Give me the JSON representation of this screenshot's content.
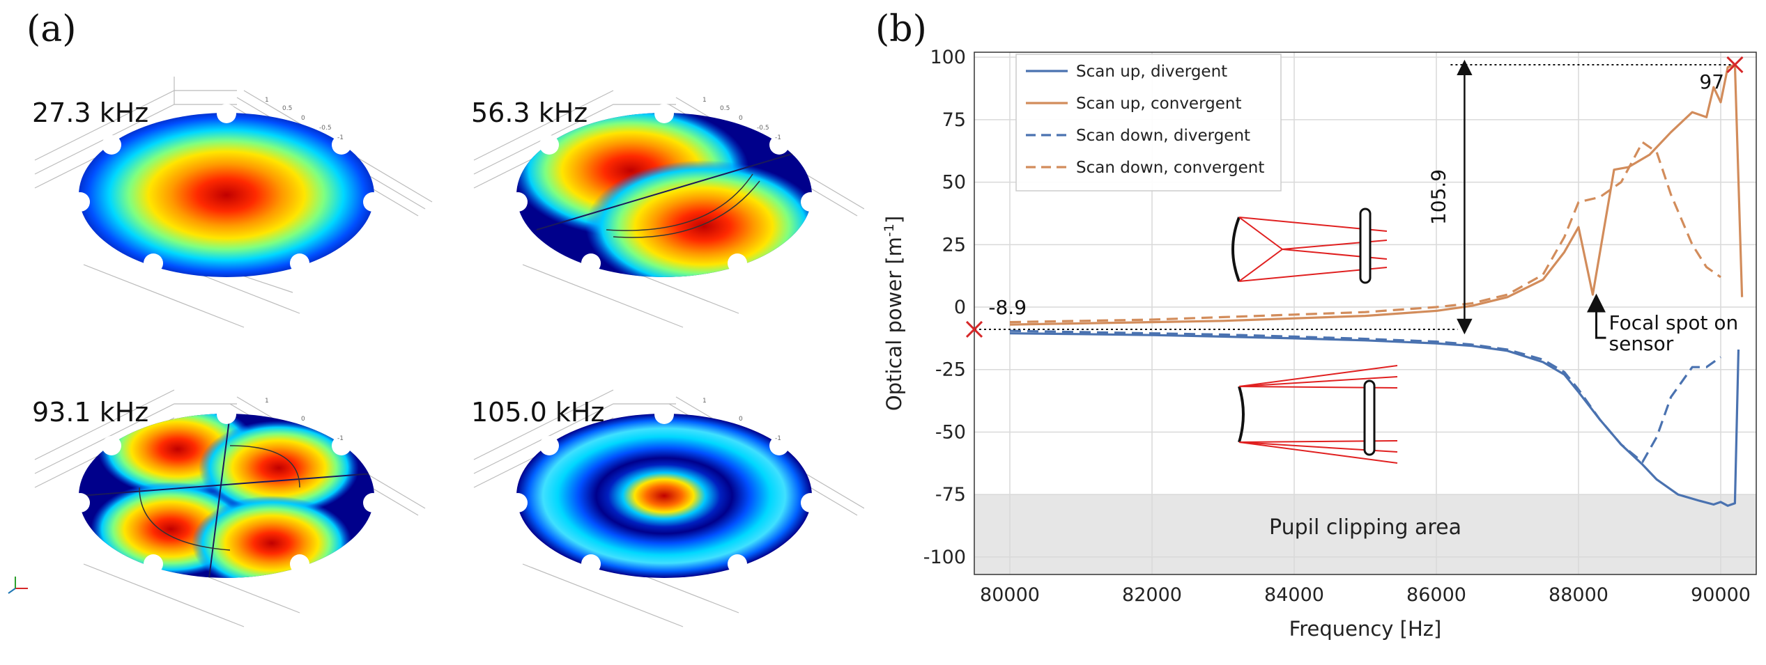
{
  "panel_a": {
    "label": "(a)",
    "modes": [
      {
        "label": "27.3 kHz",
        "pattern": "single-lobe"
      },
      {
        "label": "56.3 kHz",
        "pattern": "two-lobe"
      },
      {
        "label": "93.1 kHz",
        "pattern": "four-lobe"
      },
      {
        "label": "105.0 kHz",
        "pattern": "ring-center"
      }
    ],
    "axis_tick_values": [
      "1",
      "0.5",
      "0",
      "-0.5",
      "-1"
    ]
  },
  "panel_b": {
    "label": "(b)",
    "chart_data": {
      "type": "line",
      "xlabel": "Frequency [Hz]",
      "ylabel": "Optical power [m",
      "ylabel_sup": "-1",
      "ylabel_close": "]",
      "xlim": [
        79500,
        90500
      ],
      "ylim": [
        -107,
        102
      ],
      "xticks": [
        80000,
        82000,
        84000,
        86000,
        88000,
        90000
      ],
      "yticks": [
        100,
        75,
        50,
        25,
        0,
        -25,
        -50,
        -75,
        -100
      ],
      "grid": true,
      "legend_position": "top-left",
      "series": [
        {
          "name": "Scan up, divergent",
          "color": "#4a72b0",
          "dash": "solid",
          "x": [
            80000,
            81000,
            82000,
            83000,
            84000,
            85000,
            86000,
            86500,
            87000,
            87500,
            87800,
            88000,
            88300,
            88600,
            88900,
            89100,
            89400,
            89700,
            89900,
            90000,
            90100,
            90200,
            90250
          ],
          "y": [
            -10.5,
            -10.8,
            -11.2,
            -11.8,
            -12.5,
            -13.3,
            -14.5,
            -15.5,
            -17.5,
            -22,
            -27,
            -34,
            -45,
            -55,
            -63,
            -69,
            -75,
            -77.5,
            -79,
            -78,
            -79.5,
            -78.5,
            -17
          ]
        },
        {
          "name": "Scan up, convergent",
          "color": "#d28c5b",
          "dash": "solid",
          "x": [
            80000,
            81000,
            82000,
            83000,
            84000,
            85000,
            86000,
            86500,
            87000,
            87500,
            87800,
            88000,
            88200,
            88500,
            88700,
            89000,
            89300,
            89600,
            89800,
            89900,
            90000,
            90100,
            90200,
            90300
          ],
          "y": [
            -7,
            -6.5,
            -6,
            -5.5,
            -4.5,
            -3.5,
            -1.5,
            0.5,
            4,
            11,
            22,
            32,
            5,
            55,
            56,
            61,
            70,
            78,
            76,
            88,
            82,
            96,
            97,
            4
          ]
        },
        {
          "name": "Scan down, divergent",
          "color": "#4a72b0",
          "dash": "dashed",
          "x": [
            80000,
            81000,
            82000,
            83000,
            84000,
            85000,
            86000,
            86500,
            87000,
            87500,
            87800,
            88000,
            88300,
            88600,
            88900,
            89100,
            89300,
            89600,
            89800,
            90000
          ],
          "y": [
            -9.5,
            -10,
            -10.5,
            -11,
            -11.8,
            -12.7,
            -13.8,
            -15,
            -17,
            -21,
            -26,
            -33,
            -45,
            -55,
            -62,
            -52,
            -36,
            -24,
            -24,
            -20
          ]
        },
        {
          "name": "Scan down, convergent",
          "color": "#d28c5b",
          "dash": "dashed",
          "x": [
            80000,
            81000,
            82000,
            83000,
            84000,
            85000,
            86000,
            86500,
            87000,
            87500,
            87800,
            88000,
            88300,
            88600,
            88900,
            89100,
            89300,
            89600,
            89800,
            90000
          ],
          "y": [
            -6,
            -5.5,
            -5,
            -4,
            -3,
            -2,
            0,
            1.5,
            5,
            13,
            28,
            42,
            44,
            50,
            66,
            62,
            45,
            25,
            16,
            12
          ]
        }
      ],
      "markers": [
        {
          "x": 79500,
          "y": -8.9,
          "symbol": "x",
          "color": "#d62728"
        },
        {
          "x": 90200,
          "y": 97,
          "symbol": "x",
          "color": "#d62728"
        }
      ],
      "shaded_region": {
        "y_from": -107,
        "y_to": -75,
        "label": "Pupil clipping area",
        "color": "#e6e6e6"
      },
      "annotations": {
        "min_value_label": "-8.9",
        "max_value_label": "97",
        "span_label": "105.9",
        "focal_note_line1": "Focal spot on",
        "focal_note_line2": "sensor",
        "focal_note_x": 88250,
        "focal_note_y": 5,
        "span_x": 86200,
        "span_y_top": 97,
        "span_y_bottom": -8.9
      }
    }
  }
}
